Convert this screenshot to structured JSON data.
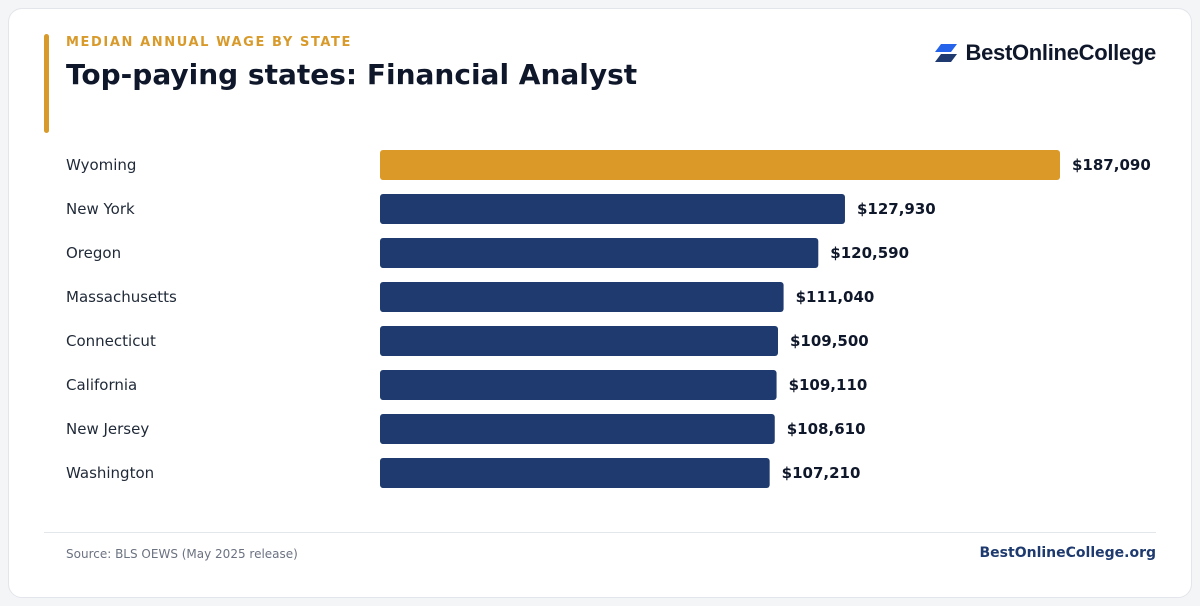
{
  "header": {
    "eyebrow": "MEDIAN ANNUAL WAGE BY STATE",
    "title": "Top-paying states: Financial Analyst",
    "logo_text": "BestOnlineCollege",
    "logo_icon": "stacked-parallelogram-logo-icon"
  },
  "colors": {
    "highlight": "#db9a28",
    "bar": "#1e3a6e",
    "accent": "#d89a2b",
    "logo_blue": "#2563eb"
  },
  "chart_data": {
    "type": "bar",
    "orientation": "horizontal",
    "categories": [
      "Wyoming",
      "New York",
      "Oregon",
      "Massachusetts",
      "Connecticut",
      "California",
      "New Jersey",
      "Washington"
    ],
    "values": [
      187090,
      127930,
      120590,
      111040,
      109500,
      109110,
      108610,
      107210
    ],
    "value_labels": [
      "$187,090",
      "$127,930",
      "$120,590",
      "$111,040",
      "$109,500",
      "$109,110",
      "$108,610",
      "$107,210"
    ],
    "highlighted_index": 0,
    "xlim": [
      0,
      187090
    ],
    "grid": false,
    "legend": "none"
  },
  "footer": {
    "source": "Source: BLS OEWS (May 2025 release)",
    "site": "BestOnlineCollege.org"
  }
}
